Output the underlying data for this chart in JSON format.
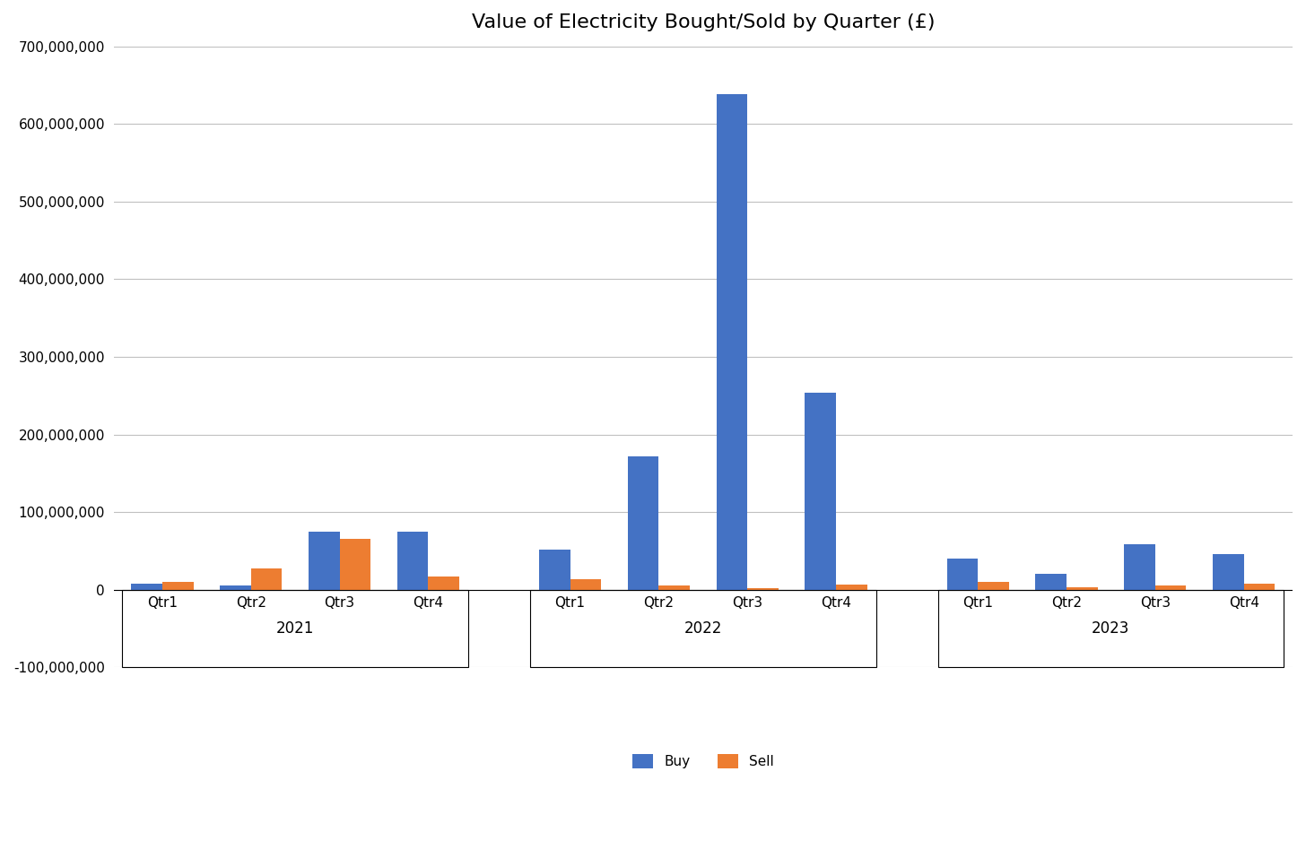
{
  "title": "Value of Electricity Bought/Sold by Quarter (£)",
  "years": [
    "2021",
    "2022",
    "2023"
  ],
  "quarters": [
    "Qtr1",
    "Qtr2",
    "Qtr3",
    "Qtr4"
  ],
  "buy_values": [
    8000000,
    5000000,
    75000000,
    75000000,
    52000000,
    172000000,
    638000000,
    254000000,
    40000000,
    20000000,
    58000000,
    46000000
  ],
  "sell_values": [
    10000000,
    27000000,
    65000000,
    17000000,
    13000000,
    5000000,
    2000000,
    7000000,
    10000000,
    3000000,
    5000000,
    8000000
  ],
  "buy_color": "#4472C4",
  "sell_color": "#ED7D31",
  "ylim_min": -100000000,
  "ylim_max": 700000000,
  "ytick_step": 100000000,
  "background_color": "#ffffff",
  "grid_color": "#C0C0C0",
  "bar_width": 0.35,
  "legend_labels": [
    "Buy",
    "Sell"
  ],
  "title_fontsize": 16,
  "tick_fontsize": 11,
  "legend_fontsize": 11
}
